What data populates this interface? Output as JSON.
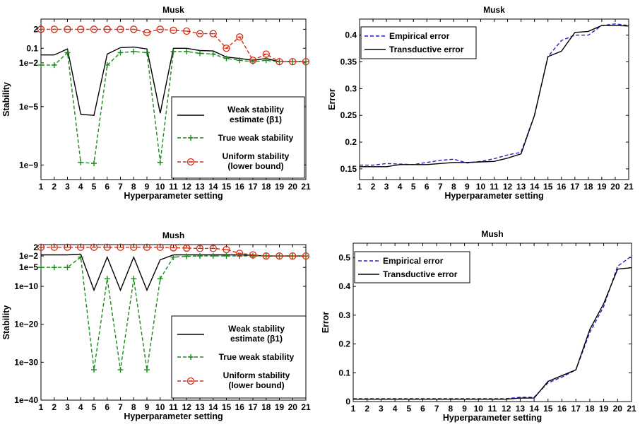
{
  "colors": {
    "weak_estimate": "#000000",
    "true_weak": "#1a8a1a",
    "uniform": "#d62a12",
    "empirical": "#1f1fd6",
    "transductive": "#000000"
  },
  "chart_data": [
    {
      "type": "line",
      "title": "Musk",
      "xlabel": "Hyperparameter setting",
      "ylabel": "Stability",
      "yscale": "log",
      "x": [
        1,
        2,
        3,
        4,
        5,
        6,
        7,
        8,
        9,
        10,
        11,
        12,
        13,
        14,
        15,
        16,
        17,
        18,
        19,
        20,
        21
      ],
      "xticks": [
        "1",
        "2",
        "3",
        "4",
        "5",
        "6",
        "7",
        "8",
        "9",
        "10",
        "11",
        "12",
        "13",
        "14",
        "15",
        "16",
        "17",
        "18",
        "19",
        "20",
        "21"
      ],
      "ylim": [
        1e-10,
        10
      ],
      "yticks": [
        2,
        0.1,
        0.01,
        1e-05,
        1e-09
      ],
      "ytick_labels": [
        "2",
        "0.1",
        "1e−2",
        "1e−5",
        "1e−9"
      ],
      "legend_position": "right",
      "series": [
        {
          "name": "Weak stability estimate (β1)",
          "style": "solid",
          "marker": "none",
          "values": [
            0.035,
            0.035,
            0.09,
            3e-06,
            2.5e-06,
            0.04,
            0.11,
            0.12,
            0.09,
            3.5e-06,
            0.1,
            0.1,
            0.07,
            0.065,
            0.025,
            0.02,
            0.015,
            0.02,
            0.012,
            0.012,
            0.012
          ]
        },
        {
          "name": "True weak stability",
          "style": "dashed",
          "marker": "plus",
          "values": [
            0.007,
            0.007,
            0.05,
            1.5e-09,
            1.3e-09,
            0.007,
            0.05,
            0.06,
            0.05,
            1.5e-09,
            0.06,
            0.06,
            0.045,
            0.04,
            0.02,
            0.015,
            0.012,
            0.015,
            0.012,
            0.012,
            0.012
          ]
        },
        {
          "name": "Uniform stability (lower bound)",
          "style": "dashed",
          "marker": "circle",
          "values": [
            2,
            2,
            2,
            2,
            2,
            2,
            2,
            2,
            1.2,
            2,
            1.7,
            1.5,
            1,
            1,
            0.1,
            0.6,
            0.015,
            0.04,
            0.012,
            0.012,
            0.012
          ]
        }
      ]
    },
    {
      "type": "line",
      "title": "Musk",
      "xlabel": "Hyperparameter setting",
      "ylabel": "Error",
      "x": [
        1,
        2,
        3,
        4,
        5,
        6,
        7,
        8,
        9,
        10,
        11,
        12,
        13,
        14,
        15,
        16,
        17,
        18,
        19,
        20,
        21
      ],
      "xticks": [
        "1",
        "2",
        "3",
        "4",
        "5",
        "6",
        "7",
        "8",
        "9",
        "10",
        "11",
        "12",
        "13",
        "14",
        "15",
        "16",
        "17",
        "18",
        "19",
        "20",
        "21"
      ],
      "ylim": [
        0.13,
        0.43
      ],
      "yticks": [
        0.15,
        0.2,
        0.25,
        0.3,
        0.35,
        0.4
      ],
      "ytick_labels": [
        "0.15",
        "0.2",
        "0.25",
        "0.3",
        "0.35",
        "0.4"
      ],
      "legend_position": "top-left",
      "series": [
        {
          "name": "Empirical error",
          "style": "dashed",
          "marker": "none",
          "values": [
            0.157,
            0.157,
            0.16,
            0.159,
            0.158,
            0.162,
            0.166,
            0.168,
            0.161,
            0.164,
            0.169,
            0.176,
            0.181,
            0.25,
            0.36,
            0.39,
            0.4,
            0.4,
            0.418,
            0.421,
            0.418
          ]
        },
        {
          "name": "Transductive error",
          "style": "solid",
          "marker": "none",
          "values": [
            0.154,
            0.154,
            0.154,
            0.158,
            0.158,
            0.158,
            0.16,
            0.162,
            0.162,
            0.163,
            0.164,
            0.17,
            0.178,
            0.25,
            0.36,
            0.37,
            0.405,
            0.407,
            0.418,
            0.418,
            0.417
          ]
        }
      ]
    },
    {
      "type": "line",
      "title": "Mush",
      "xlabel": "Hyperparameter setting",
      "ylabel": "Stability",
      "yscale": "log",
      "x": [
        1,
        2,
        3,
        4,
        5,
        6,
        7,
        8,
        9,
        10,
        11,
        12,
        13,
        14,
        15,
        16,
        17,
        18,
        19,
        20,
        21
      ],
      "xticks": [
        "1",
        "2",
        "3",
        "4",
        "5",
        "6",
        "7",
        "8",
        "9",
        "10",
        "11",
        "12",
        "13",
        "14",
        "15",
        "16",
        "17",
        "18",
        "19",
        "20",
        "21"
      ],
      "ylim": [
        1e-40,
        10
      ],
      "yticks": [
        2,
        0.01,
        1e-05,
        1e-10,
        1e-20,
        1e-30,
        1e-40
      ],
      "ytick_labels": [
        "2",
        "1e−2",
        "1e−5",
        "1e−10",
        "1e−20",
        "1e−30",
        "1e−40"
      ],
      "legend_position": "bottom-right",
      "series": [
        {
          "name": "Weak stability estimate (β1)",
          "style": "solid",
          "marker": "none",
          "values": [
            0.02,
            0.02,
            0.02,
            0.03,
            1e-11,
            0.005,
            1e-11,
            0.005,
            1e-11,
            0.001,
            0.02,
            0.02,
            0.02,
            0.02,
            0.02,
            0.02,
            0.015,
            0.01,
            0.01,
            0.01,
            0.01
          ]
        },
        {
          "name": "True weak stability",
          "style": "dashed",
          "marker": "plus",
          "values": [
            1e-05,
            1e-05,
            1e-05,
            0.005,
            1e-32,
            1e-08,
            1e-32,
            1e-08,
            1e-32,
            1e-08,
            0.005,
            0.008,
            0.01,
            0.01,
            0.01,
            0.01,
            0.01,
            0.01,
            0.01,
            0.01,
            0.01
          ]
        },
        {
          "name": "Uniform stability (lower bound)",
          "style": "dashed",
          "marker": "circle",
          "values": [
            2,
            2,
            2,
            2,
            2,
            2,
            2,
            2,
            2,
            2,
            1.5,
            1.2,
            1,
            1,
            0.5,
            0.05,
            0.02,
            0.01,
            0.01,
            0.01,
            0.01
          ]
        }
      ]
    },
    {
      "type": "line",
      "title": "Mush",
      "xlabel": "Hyperparameter setting",
      "ylabel": "Error",
      "x": [
        1,
        2,
        3,
        4,
        5,
        6,
        7,
        8,
        9,
        10,
        11,
        12,
        13,
        14,
        15,
        16,
        17,
        18,
        19,
        20,
        21
      ],
      "xticks": [
        "1",
        "2",
        "3",
        "4",
        "5",
        "6",
        "7",
        "8",
        "9",
        "10",
        "11",
        "12",
        "13",
        "14",
        "15",
        "16",
        "17",
        "18",
        "19",
        "20",
        "21"
      ],
      "ylim": [
        0,
        0.55
      ],
      "yticks": [
        0,
        0.1,
        0.2,
        0.3,
        0.4,
        0.5
      ],
      "ytick_labels": [
        "0",
        "0.1",
        "0.2",
        "0.3",
        "0.4",
        "0.5"
      ],
      "legend_position": "top-left",
      "series": [
        {
          "name": "Empirical error",
          "style": "dashed",
          "marker": "none",
          "values": [
            0.01,
            0.01,
            0.01,
            0.01,
            0.01,
            0.01,
            0.01,
            0.01,
            0.01,
            0.01,
            0.01,
            0.01,
            0.015,
            0.015,
            0.065,
            0.085,
            0.11,
            0.24,
            0.33,
            0.47,
            0.505
          ]
        },
        {
          "name": "Transductive error",
          "style": "solid",
          "marker": "none",
          "values": [
            0.008,
            0.008,
            0.008,
            0.008,
            0.008,
            0.008,
            0.008,
            0.008,
            0.008,
            0.008,
            0.008,
            0.008,
            0.012,
            0.012,
            0.07,
            0.09,
            0.11,
            0.25,
            0.34,
            0.46,
            0.465
          ]
        }
      ]
    }
  ]
}
